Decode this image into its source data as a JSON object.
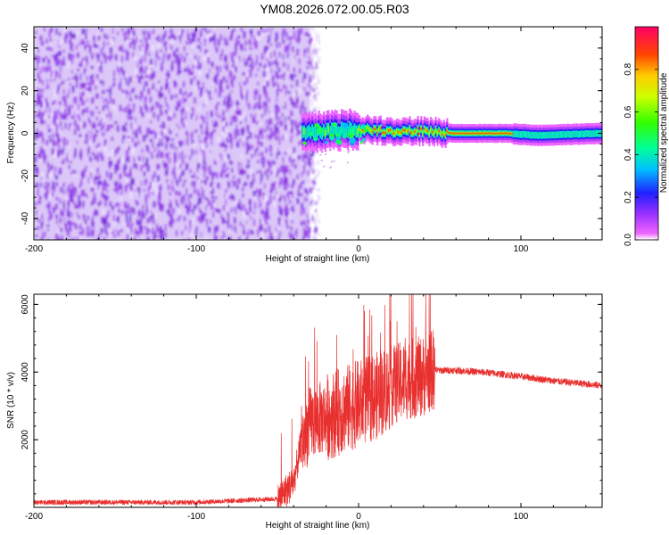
{
  "title": "YM08.2026.072.00.05.R03",
  "chart_data": [
    {
      "type": "heatmap",
      "xlabel": "Height of straight line (km)",
      "ylabel": "Frequency (Hz)",
      "xlim": [
        -200,
        150
      ],
      "ylim": [
        -50,
        50
      ],
      "xticks": [
        -200,
        -100,
        0,
        100
      ],
      "yticks": [
        -40,
        -20,
        0,
        20,
        40
      ],
      "colorbar": {
        "label": "Normalized spectral amplitude",
        "range": [
          0,
          1
        ],
        "ticks": [
          "0.0",
          "0.2",
          "0.4",
          "0.6",
          "0.8"
        ]
      },
      "features": [
        {
          "name": "noise",
          "x_range": [
            -200,
            -30
          ],
          "y_range": [
            -50,
            50
          ],
          "amplitude": 0.15
        },
        {
          "name": "carrier",
          "points": [
            [
              -35,
              0
            ],
            [
              -20,
              1
            ],
            [
              0,
              2
            ],
            [
              20,
              1
            ],
            [
              40,
              1
            ],
            [
              60,
              0
            ],
            [
              90,
              0
            ],
            [
              110,
              -1
            ],
            [
              150,
              0
            ]
          ],
          "peak_amplitude": 1.0
        }
      ]
    },
    {
      "type": "line",
      "xlabel": "Height of straight line (km)",
      "ylabel": "SNR (10 * v/v)",
      "xlim": [
        -200,
        150
      ],
      "ylim": [
        0,
        6300
      ],
      "xticks": [
        -200,
        -100,
        0,
        100
      ],
      "yticks": [
        2000,
        4000,
        6000
      ],
      "color": "#e8302f",
      "envelope": {
        "x": [
          -200,
          -100,
          -50,
          -40,
          -35,
          -30,
          -20,
          -10,
          0,
          10,
          20,
          30,
          40,
          46,
          48,
          60,
          80,
          100,
          120,
          150
        ],
        "y": [
          150,
          150,
          250,
          800,
          2000,
          2600,
          2800,
          3000,
          3200,
          3400,
          3700,
          3900,
          4000,
          4200,
          4050,
          4050,
          3980,
          3870,
          3740,
          3600
        ]
      }
    }
  ]
}
